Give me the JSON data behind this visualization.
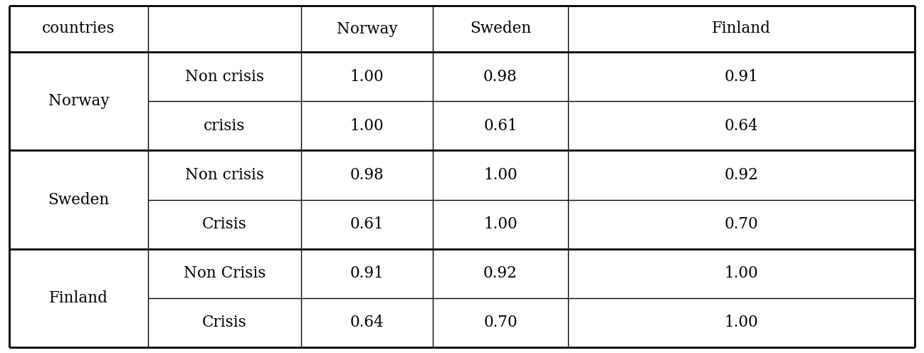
{
  "header_row": [
    "countries",
    "",
    "Norway",
    "Sweden",
    "Finland"
  ],
  "rows": [
    [
      "Norway",
      "Non crisis",
      "1.00",
      "0.98",
      "0.91"
    ],
    [
      "",
      "crisis",
      "1.00",
      "0.61",
      "0.64"
    ],
    [
      "Sweden",
      "Non crisis",
      "0.98",
      "1.00",
      "0.92"
    ],
    [
      "",
      "Crisis",
      "0.61",
      "1.00",
      "0.70"
    ],
    [
      "Finland",
      "Non Crisis",
      "0.91",
      "0.92",
      "1.00"
    ],
    [
      "",
      "Crisis",
      "0.64",
      "0.70",
      "1.00"
    ]
  ],
  "background_color": "#ffffff",
  "line_color": "#000000",
  "font_size": 15.5,
  "header_font_size": 15.5,
  "thick_lw": 2.0,
  "thin_lw": 1.0
}
